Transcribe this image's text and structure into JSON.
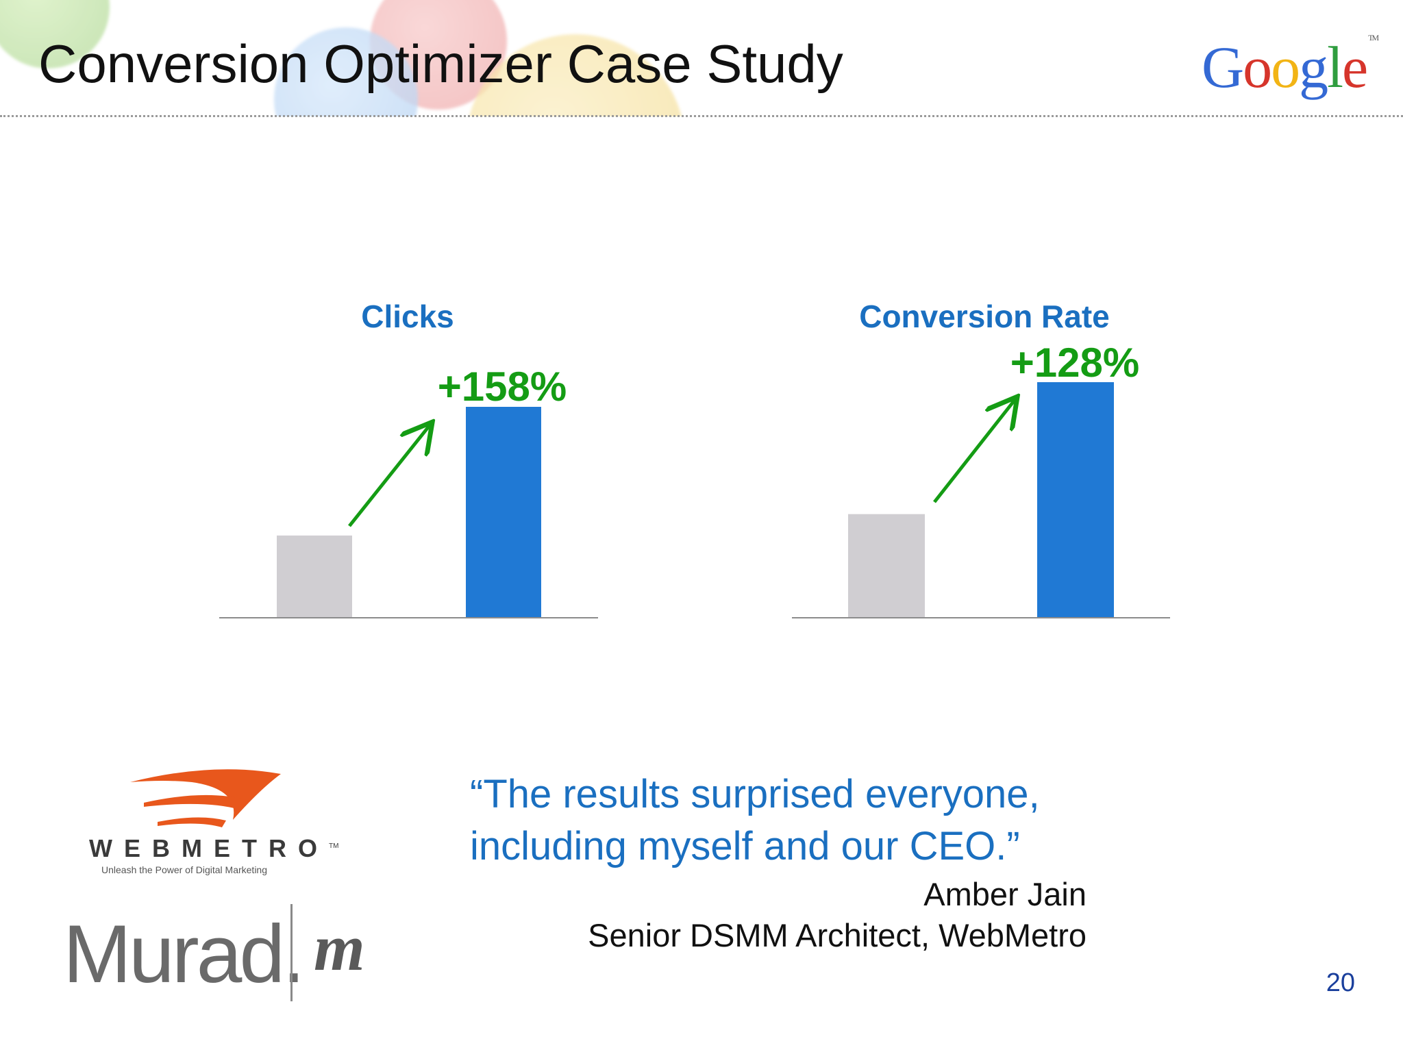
{
  "slide": {
    "title": "Conversion Optimizer Case Study",
    "page_number": "20"
  },
  "logo": {
    "letters": [
      {
        "char": "G",
        "color": "#3469d4"
      },
      {
        "char": "o",
        "color": "#d6352b"
      },
      {
        "char": "o",
        "color": "#f2b415"
      },
      {
        "char": "g",
        "color": "#3469d4"
      },
      {
        "char": "l",
        "color": "#2f9d3f"
      },
      {
        "char": "e",
        "color": "#d6352b"
      }
    ],
    "tm": "TM"
  },
  "colors": {
    "before_bar": "#d0ced2",
    "after_bar": "#2079d4",
    "chart_title": "#1a6fc0",
    "increase_label": "#149c14",
    "arrow": "#149c14",
    "quote": "#1a6fc0"
  },
  "chart_data": [
    {
      "type": "bar",
      "title": "Clicks",
      "values": [
        0.39,
        1.0
      ],
      "annotation": "+158%"
    },
    {
      "type": "bar",
      "title": "Conversion Rate",
      "values": [
        0.44,
        1.0
      ],
      "annotation": "+128%"
    }
  ],
  "quote": {
    "text": "“The results surprised everyone, including myself and our CEO.”",
    "name": "Amber Jain",
    "role": "Senior DSMM Architect, WebMetro"
  },
  "brands": {
    "webmetro_name": "WEBMETRO",
    "webmetro_tm": "TM",
    "webmetro_tagline": "Unleash the Power of Digital Marketing",
    "murad_name": "Murad.",
    "murad_mark": "m"
  }
}
